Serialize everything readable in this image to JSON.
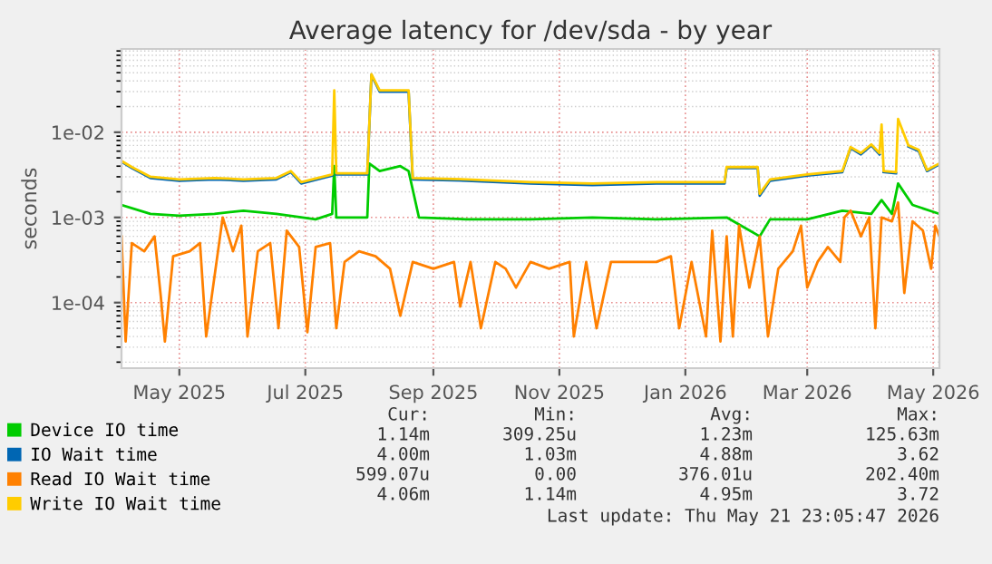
{
  "chart_data": {
    "type": "line",
    "title": "Average latency for /dev/sda - by year",
    "ylabel": "seconds",
    "log": "y",
    "ylim": [
      1.7e-05,
      0.095
    ],
    "yticks": [
      {
        "value": 0.0001,
        "label": "1e-04"
      },
      {
        "value": 0.001,
        "label": "1e-03"
      },
      {
        "value": 0.01,
        "label": "1e-02"
      }
    ],
    "xlim": [
      "2025-04-17",
      "2026-05-18"
    ],
    "xticks": [
      {
        "value": "2025-05-15",
        "label": "May 2025"
      },
      {
        "value": "2025-07-15",
        "label": "Jul 2025"
      },
      {
        "value": "2025-09-15",
        "label": "Sep 2025"
      },
      {
        "value": "2025-11-15",
        "label": "Nov 2025"
      },
      {
        "value": "2026-01-15",
        "label": "Jan 2026"
      },
      {
        "value": "2026-03-15",
        "label": "Mar 2026"
      },
      {
        "value": "2026-05-15",
        "label": "May 2026"
      }
    ],
    "grid": true,
    "legend": "bottom",
    "series": [
      {
        "name": "Device IO time",
        "color": "#00cc00",
        "x": [
          "2025-04-17",
          "2025-05-01",
          "2025-05-15",
          "2025-06-01",
          "2025-06-15",
          "2025-07-01",
          "2025-07-20",
          "2025-07-28",
          "2025-07-29",
          "2025-07-30",
          "2025-08-14",
          "2025-08-15",
          "2025-08-20",
          "2025-08-30",
          "2025-09-03",
          "2025-09-08",
          "2025-10-01",
          "2025-11-01",
          "2025-12-01",
          "2026-01-01",
          "2026-02-04",
          "2026-02-20",
          "2026-02-25",
          "2026-03-15",
          "2026-04-01",
          "2026-04-15",
          "2026-04-20",
          "2026-04-25",
          "2026-04-28",
          "2026-05-05",
          "2026-05-18"
        ],
        "values": [
          0.0014,
          0.0011,
          0.00105,
          0.0011,
          0.0012,
          0.0011,
          0.00095,
          0.0011,
          0.004,
          0.001,
          0.001,
          0.0043,
          0.0035,
          0.004,
          0.0035,
          0.001,
          0.00095,
          0.00095,
          0.001,
          0.00095,
          0.001,
          0.0006,
          0.00095,
          0.00095,
          0.0012,
          0.0011,
          0.0016,
          0.0011,
          0.0025,
          0.0014,
          0.0011
        ]
      },
      {
        "name": "IO Wait time",
        "color": "#0066b3",
        "x": [
          "2025-04-17",
          "2025-04-22",
          "2025-05-01",
          "2025-05-15",
          "2025-06-01",
          "2025-06-15",
          "2025-07-01",
          "2025-07-08",
          "2025-07-13",
          "2025-07-28",
          "2025-07-29",
          "2025-07-30",
          "2025-08-14",
          "2025-08-16",
          "2025-08-20",
          "2025-09-03",
          "2025-09-05",
          "2025-10-01",
          "2025-11-01",
          "2025-12-01",
          "2026-01-01",
          "2026-02-03",
          "2026-02-04",
          "2026-02-19",
          "2026-02-20",
          "2026-02-25",
          "2026-03-15",
          "2026-04-01",
          "2026-04-05",
          "2026-04-10",
          "2026-04-15",
          "2026-04-19",
          "2026-04-20",
          "2026-04-21",
          "2026-04-27",
          "2026-04-28",
          "2026-05-03",
          "2026-05-08",
          "2026-05-12",
          "2026-05-18"
        ],
        "values": [
          0.0045,
          0.0038,
          0.0029,
          0.0027,
          0.0028,
          0.0027,
          0.0028,
          0.0034,
          0.0025,
          0.0031,
          null,
          0.0032,
          0.0032,
          0.047,
          0.03,
          0.03,
          0.0028,
          0.0027,
          0.0025,
          0.0024,
          0.0025,
          0.0025,
          0.0038,
          0.0038,
          0.0018,
          0.0027,
          0.0031,
          0.0034,
          0.0065,
          0.0055,
          0.007,
          0.0055,
          null,
          0.0034,
          0.0033,
          null,
          0.0068,
          0.006,
          0.0035,
          0.0042
        ]
      },
      {
        "name": "Read IO Wait time",
        "color": "#ff8000",
        "x": [
          "2025-04-17",
          "2025-04-19",
          "2025-04-22",
          "2025-04-28",
          "2025-05-03",
          "2025-05-06",
          "2025-05-08",
          "2025-05-12",
          "2025-05-20",
          "2025-05-25",
          "2025-05-28",
          "2025-06-02",
          "2025-06-05",
          "2025-06-10",
          "2025-06-14",
          "2025-06-17",
          "2025-06-22",
          "2025-06-28",
          "2025-07-02",
          "2025-07-06",
          "2025-07-12",
          "2025-07-16",
          "2025-07-20",
          "2025-07-27",
          "2025-07-30",
          "2025-08-03",
          "2025-08-10",
          "2025-08-18",
          "2025-08-25",
          "2025-08-30",
          "2025-09-05",
          "2025-09-15",
          "2025-09-25",
          "2025-09-28",
          "2025-10-03",
          "2025-10-08",
          "2025-10-15",
          "2025-10-20",
          "2025-10-25",
          "2025-11-01",
          "2025-11-10",
          "2025-11-20",
          "2025-11-22",
          "2025-11-28",
          "2025-12-03",
          "2025-12-10",
          "2025-12-20",
          "2026-01-01",
          "2026-01-08",
          "2026-01-12",
          "2026-01-18",
          "2026-01-25",
          "2026-01-28",
          "2026-02-01",
          "2026-02-04",
          "2026-02-07",
          "2026-02-10",
          "2026-02-15",
          "2026-02-20",
          "2026-02-24",
          "2026-03-01",
          "2026-03-08",
          "2026-03-12",
          "2026-03-15",
          "2026-03-20",
          "2026-03-25",
          "2026-03-31",
          "2026-04-02",
          "2026-04-05",
          "2026-04-10",
          "2026-04-14",
          "2026-04-17",
          "2026-04-20",
          "2026-04-25",
          "2026-04-28",
          "2026-05-01",
          "2026-05-05",
          "2026-05-10",
          "2026-05-14",
          "2026-05-16",
          "2026-05-18"
        ],
        "values": [
          0.0006,
          3.5e-05,
          0.0005,
          0.0004,
          0.0006,
          0.00012,
          3.5e-05,
          0.00035,
          0.0004,
          0.0005,
          4e-05,
          0.0003,
          0.001,
          0.0004,
          0.0008,
          4e-05,
          0.0004,
          0.0005,
          5e-05,
          0.0007,
          0.00045,
          4.5e-05,
          0.00045,
          0.0005,
          5e-05,
          0.0003,
          0.0004,
          0.00035,
          0.00025,
          7e-05,
          0.0003,
          0.00025,
          0.0003,
          9e-05,
          0.0003,
          5e-05,
          0.0003,
          0.00025,
          0.00015,
          0.0003,
          0.00025,
          0.0003,
          4e-05,
          0.0003,
          5e-05,
          0.0003,
          0.0003,
          0.0003,
          0.00035,
          5e-05,
          0.0003,
          4e-05,
          0.0007,
          3.5e-05,
          0.0006,
          4e-05,
          0.0008,
          0.00015,
          0.0006,
          4e-05,
          0.00025,
          0.0004,
          0.0008,
          0.00015,
          0.0003,
          0.00045,
          0.0003,
          0.001,
          0.0012,
          0.0006,
          0.001,
          5e-05,
          0.001,
          0.0009,
          0.0015,
          0.00013,
          0.0009,
          0.0007,
          0.00025,
          0.0008,
          0.0006
        ]
      },
      {
        "name": "Write IO Wait time",
        "color": "#ffcc00",
        "x": [
          "2025-04-17",
          "2025-04-22",
          "2025-05-01",
          "2025-05-15",
          "2025-06-01",
          "2025-06-15",
          "2025-07-01",
          "2025-07-08",
          "2025-07-13",
          "2025-07-28",
          "2025-07-29",
          "2025-07-30",
          "2025-08-14",
          "2025-08-16",
          "2025-08-20",
          "2025-09-03",
          "2025-09-05",
          "2025-10-01",
          "2025-11-01",
          "2025-12-01",
          "2026-01-01",
          "2026-02-03",
          "2026-02-04",
          "2026-02-19",
          "2026-02-20",
          "2026-02-25",
          "2026-03-15",
          "2026-04-01",
          "2026-04-05",
          "2026-04-10",
          "2026-04-15",
          "2026-04-19",
          "2026-04-20",
          "2026-04-21",
          "2026-04-27",
          "2026-04-28",
          "2026-05-03",
          "2026-05-08",
          "2026-05-12",
          "2026-05-18"
        ],
        "values": [
          0.0046,
          0.0039,
          0.003,
          0.0028,
          0.0029,
          0.0028,
          0.0029,
          0.0035,
          0.0026,
          0.0032,
          0.031,
          0.0033,
          0.0033,
          0.048,
          0.031,
          0.031,
          0.0029,
          0.0028,
          0.0026,
          0.0025,
          0.0026,
          0.0026,
          0.0039,
          0.0039,
          0.0019,
          0.0028,
          0.0032,
          0.0035,
          0.0067,
          0.0057,
          0.0072,
          0.0057,
          0.0123,
          0.0035,
          0.0034,
          0.0143,
          0.007,
          0.0062,
          0.0036,
          0.0043
        ]
      }
    ],
    "annotations": [
      "Cur:",
      "Min:",
      "Avg:",
      "Max:",
      "1.14m",
      "309.25u",
      "1.23m",
      "125.63m",
      "4.00m",
      "1.03m",
      "4.88m",
      "3.62",
      "599.07u",
      "0.00",
      "376.01u",
      "202.40m",
      "4.06m",
      "1.14m",
      "4.95m",
      "3.72",
      "Last update: Thu May 21 23:05:47 2026"
    ]
  }
}
